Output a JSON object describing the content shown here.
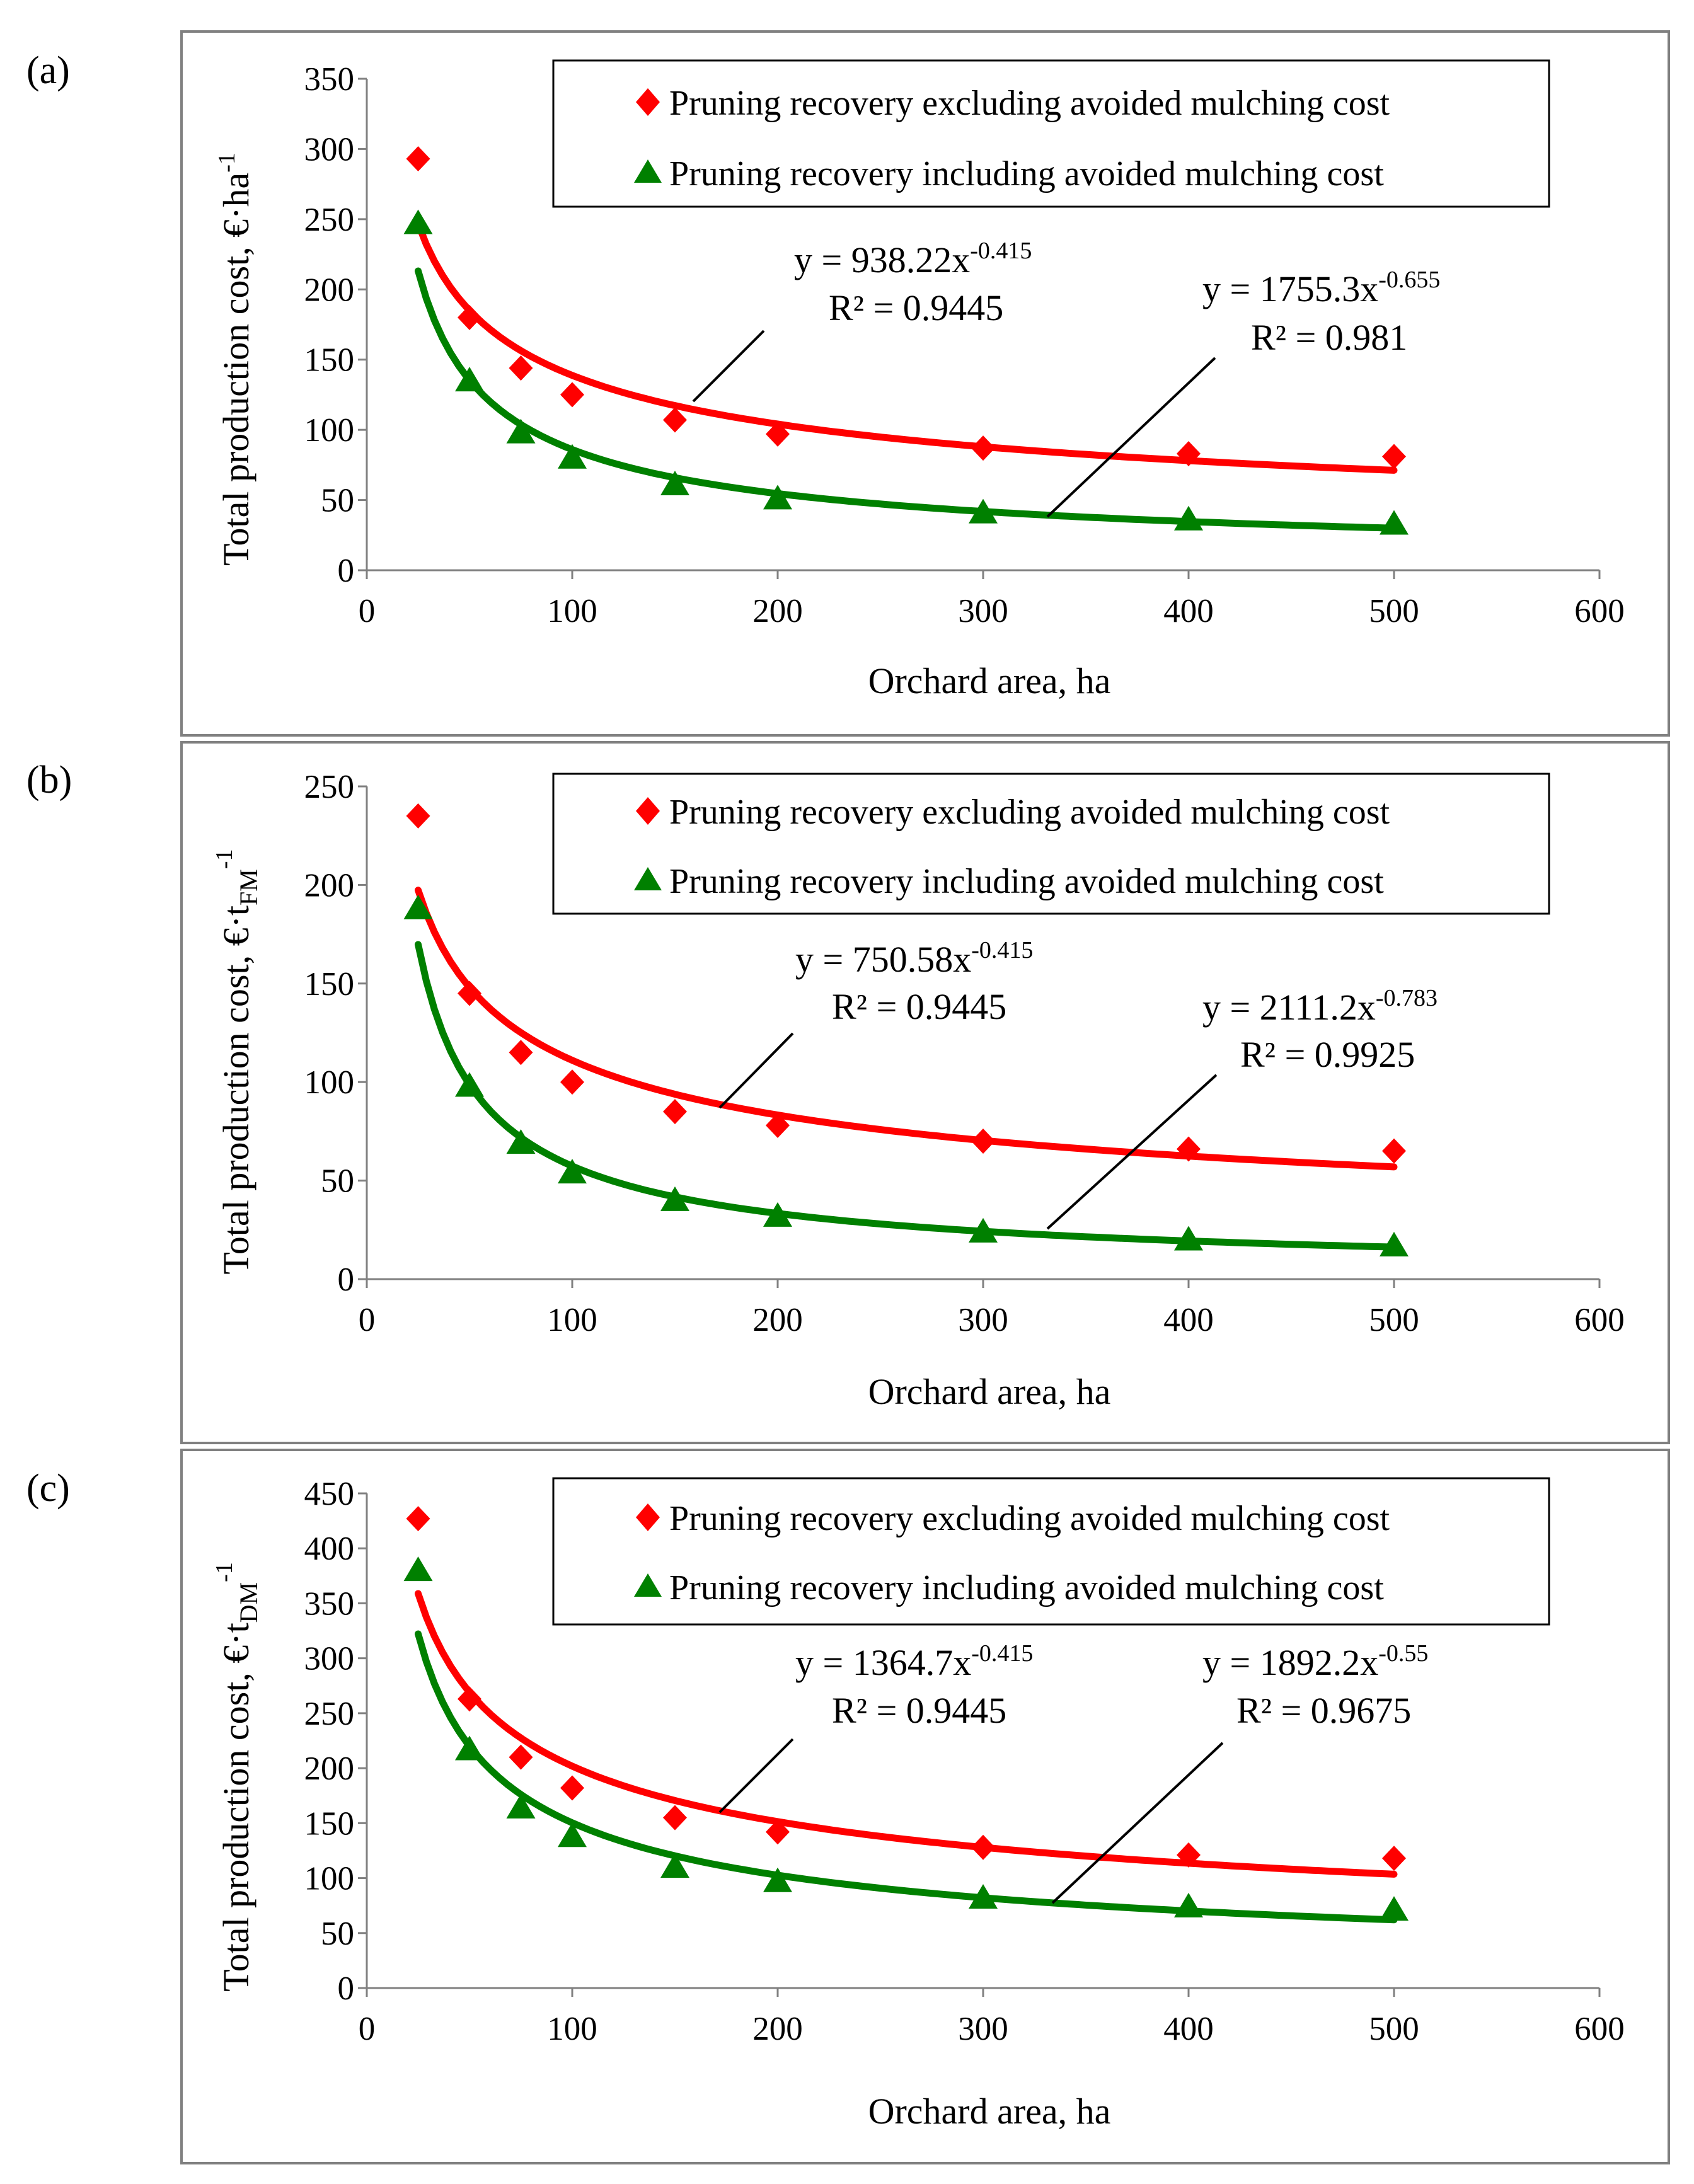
{
  "colors": {
    "red": "#ff0000",
    "green": "#008000",
    "frame": "#808080",
    "axis": "#808080",
    "legend_border": "#000000"
  },
  "chart_data": [
    {
      "panel": "(a)",
      "type": "scatter",
      "xlabel": "Orchard area, ha",
      "ylabel": {
        "base": "Total production cost, €·ha",
        "sub": "",
        "sup": "-1"
      },
      "xlim": [
        0,
        600
      ],
      "xticks": [
        0,
        100,
        200,
        300,
        400,
        500,
        600
      ],
      "ylim": [
        0,
        350
      ],
      "yticks": [
        0,
        50,
        100,
        150,
        200,
        250,
        300,
        350
      ],
      "x": [
        25,
        50,
        75,
        100,
        150,
        200,
        300,
        400,
        500
      ],
      "series": [
        {
          "name": "Pruning recovery excluding avoided mulching cost",
          "color": "red",
          "marker": "diamond",
          "values": [
            293,
            180,
            144,
            125,
            107,
            97,
            87,
            83,
            81
          ],
          "fit": {
            "a": 938.22,
            "b": -0.415,
            "eq_prefix": "y = 938.22x",
            "eq_exp": "-0.415",
            "r2": "R² = 0.9445"
          }
        },
        {
          "name": "Pruning recovery including avoided  mulching cost",
          "color": "green",
          "marker": "triangle",
          "values": [
            247,
            135,
            98,
            80,
            61,
            51,
            41,
            36,
            33
          ],
          "fit": {
            "a": 1755.3,
            "b": -0.655,
            "eq_prefix": "y = 1755.3x",
            "eq_exp": "-0.655",
            "r2": "R² = 0.981"
          }
        }
      ]
    },
    {
      "panel": "(b)",
      "type": "scatter",
      "xlabel": "Orchard area, ha",
      "ylabel": {
        "base": "Total production cost, €·t",
        "sub": "FM",
        "sup": "-1"
      },
      "xlim": [
        0,
        600
      ],
      "xticks": [
        0,
        100,
        200,
        300,
        400,
        500,
        600
      ],
      "ylim": [
        0,
        250
      ],
      "yticks": [
        0,
        50,
        100,
        150,
        200,
        250
      ],
      "x": [
        25,
        50,
        75,
        100,
        150,
        200,
        300,
        400,
        500
      ],
      "series": [
        {
          "name": "Pruning recovery excluding avoided mulching cost",
          "color": "red",
          "marker": "diamond",
          "values": [
            235,
            145,
            115,
            100,
            85,
            78,
            70,
            66,
            65
          ],
          "fit": {
            "a": 750.58,
            "b": -0.415,
            "eq_prefix": "y = 750.58x",
            "eq_exp": "-0.415",
            "r2": "R² = 0.9445"
          }
        },
        {
          "name": "Pruning recovery including avoided  mulching cost",
          "color": "green",
          "marker": "triangle",
          "values": [
            188,
            98,
            69,
            54,
            40,
            32,
            24,
            20,
            17
          ],
          "fit": {
            "a": 2111.2,
            "b": -0.783,
            "eq_prefix": "y = 2111.2x",
            "eq_exp": "-0.783",
            "r2": "R² = 0.9925"
          }
        }
      ]
    },
    {
      "panel": "(c)",
      "type": "scatter",
      "xlabel": "Orchard area, ha",
      "ylabel": {
        "base": "Total production cost, €·t",
        "sub": "DM",
        "sup": "-1"
      },
      "xlim": [
        0,
        600
      ],
      "xticks": [
        0,
        100,
        200,
        300,
        400,
        500,
        600
      ],
      "ylim": [
        0,
        450
      ],
      "yticks": [
        0,
        50,
        100,
        150,
        200,
        250,
        300,
        350,
        400,
        450
      ],
      "x": [
        25,
        50,
        75,
        100,
        150,
        200,
        300,
        400,
        500
      ],
      "series": [
        {
          "name": "Pruning recovery excluding avoided mulching cost",
          "color": "red",
          "marker": "diamond",
          "values": [
            427,
            263,
            210,
            182,
            155,
            142,
            128,
            121,
            118
          ],
          "fit": {
            "a": 1364.7,
            "b": -0.415,
            "eq_prefix": "y = 1364.7x",
            "eq_exp": "-0.415",
            "r2": "R² = 0.9445"
          }
        },
        {
          "name": "Pruning recovery including avoided  mulching cost",
          "color": "green",
          "marker": "triangle",
          "values": [
            380,
            217,
            164,
            138,
            110,
            97,
            82,
            74,
            71
          ],
          "fit": {
            "a": 1892.2,
            "b": -0.55,
            "eq_prefix": "y = 1892.2x",
            "eq_exp": "-0.55",
            "r2": "R² = 0.9675"
          }
        }
      ]
    }
  ]
}
